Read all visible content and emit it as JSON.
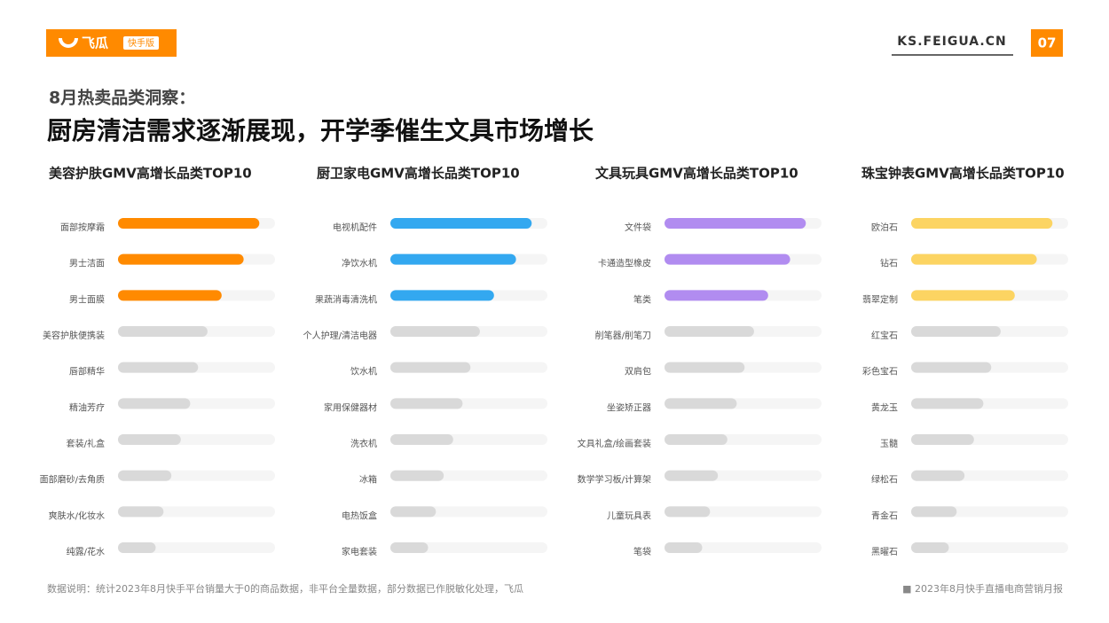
{
  "header": {
    "logo": "飞瓜",
    "logo_badge": "快手版",
    "site": "KS.FEIGUA.CN",
    "page": "07"
  },
  "heading": "8月热卖品类洞察：",
  "title": "厨房清洁需求逐渐展现，开学季催生文具市场增长",
  "footer": {
    "note": "数据说明：统计2023年8月快手平台销量大于0的商品数据，非平台全量数据，部分数据已作脱敏化处理，飞瓜",
    "report": "■ 2023年8月快手直播电商营销月报"
  },
  "chart_data": [
    {
      "type": "bar",
      "title": "美容护肤GMV高增长品类TOP10",
      "categories": [
        "面部按摩霜",
        "男士洁面",
        "男士面膜",
        "美容护肤便携装",
        "唇部精华",
        "精油芳疗",
        "套装/礼盒",
        "面部磨砂/去角质",
        "爽肤水/化妆水",
        "纯露/花水"
      ],
      "values": [
        90,
        80,
        66,
        57,
        51,
        46,
        40,
        34,
        29,
        24
      ],
      "colors": [
        "#ff8a00",
        "#ff8a00",
        "#ff8a00",
        "#d9d9d9",
        "#d9d9d9",
        "#d9d9d9",
        "#d9d9d9",
        "#d9d9d9",
        "#d9d9d9",
        "#d9d9d9"
      ],
      "xlim": [
        0,
        100
      ]
    },
    {
      "type": "bar",
      "title": "厨卫家电GMV高增长品类TOP10",
      "categories": [
        "电视机配件",
        "净饮水机",
        "果蔬消毒清洗机",
        "个人护理/清洁电器",
        "饮水机",
        "家用保健器材",
        "洗衣机",
        "冰箱",
        "电热饭盒",
        "家电套装"
      ],
      "values": [
        90,
        80,
        66,
        57,
        51,
        46,
        40,
        34,
        29,
        24
      ],
      "colors": [
        "#33a8f0",
        "#33a8f0",
        "#33a8f0",
        "#d9d9d9",
        "#d9d9d9",
        "#d9d9d9",
        "#d9d9d9",
        "#d9d9d9",
        "#d9d9d9",
        "#d9d9d9"
      ],
      "xlim": [
        0,
        100
      ]
    },
    {
      "type": "bar",
      "title": "文具玩具GMV高增长品类TOP10",
      "categories": [
        "文件袋",
        "卡通造型橡皮",
        "笔类",
        "削笔器/削笔刀",
        "双肩包",
        "坐姿矫正器",
        "文具礼盒/绘画套装",
        "数学学习板/计算架",
        "儿童玩具表",
        "笔袋"
      ],
      "values": [
        90,
        80,
        66,
        57,
        51,
        46,
        40,
        34,
        29,
        24
      ],
      "colors": [
        "#b18cf0",
        "#b18cf0",
        "#b18cf0",
        "#d9d9d9",
        "#d9d9d9",
        "#d9d9d9",
        "#d9d9d9",
        "#d9d9d9",
        "#d9d9d9",
        "#d9d9d9"
      ],
      "xlim": [
        0,
        100
      ]
    },
    {
      "type": "bar",
      "title": "珠宝钟表GMV高增长品类TOP10",
      "categories": [
        "欧泊石",
        "钻石",
        "翡翠定制",
        "红宝石",
        "彩色宝石",
        "黄龙玉",
        "玉髓",
        "绿松石",
        "青金石",
        "黑曜石"
      ],
      "values": [
        90,
        80,
        66,
        57,
        51,
        46,
        40,
        34,
        29,
        24
      ],
      "colors": [
        "#fcd462",
        "#fcd462",
        "#fcd462",
        "#d9d9d9",
        "#d9d9d9",
        "#d9d9d9",
        "#d9d9d9",
        "#d9d9d9",
        "#d9d9d9",
        "#d9d9d9"
      ],
      "xlim": [
        0,
        100
      ]
    }
  ]
}
